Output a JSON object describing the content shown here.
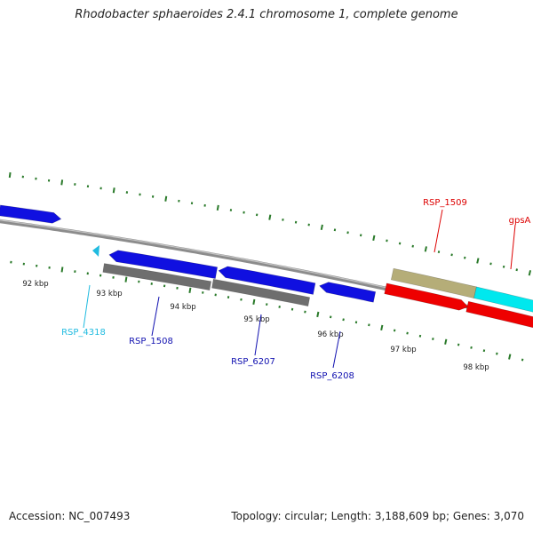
{
  "title": "Rhodobacter sphaeroides 2.4.1 chromosome 1, complete genome",
  "footer": {
    "accession": "Accession: NC_007493",
    "topology": "Topology: circular; Length: 3,188,609 bp; Genes: 3,070"
  },
  "colors": {
    "backbone": "#8a8a8a",
    "tick": "#2a7a2a",
    "gene_blue": "#1010e0",
    "gene_gray": "#6e6e6e",
    "gene_khaki": "#b5ad78",
    "gene_cyan": "#00e8ee",
    "gene_red": "#ee0000",
    "label_cyan": "#20bbe0",
    "label_blue": "#1010b0",
    "label_red": "#dd0000"
  },
  "scale_labels": [
    "92 kbp",
    "93 kbp",
    "94 kbp",
    "95 kbp",
    "96 kbp",
    "97 kbp",
    "98 kbp"
  ],
  "gene_labels": [
    {
      "text": "RSP_4318",
      "color": "label_cyan"
    },
    {
      "text": "RSP_1508",
      "color": "label_blue"
    },
    {
      "text": "RSP_6207",
      "color": "label_blue"
    },
    {
      "text": "RSP_6208",
      "color": "label_blue"
    },
    {
      "text": "RSP_1509",
      "color": "label_red"
    },
    {
      "text": "gpsA",
      "color": "label_red"
    }
  ],
  "features": [
    {
      "color": "gene_blue",
      "direction": "forward"
    },
    {
      "color": "gene_blue",
      "direction": "reverse"
    },
    {
      "color": "gene_blue",
      "direction": "reverse"
    },
    {
      "color": "gene_blue",
      "direction": "reverse"
    },
    {
      "color": "gene_gray",
      "direction": "none"
    },
    {
      "color": "gene_gray",
      "direction": "none"
    },
    {
      "color": "gene_khaki",
      "direction": "none"
    },
    {
      "color": "gene_cyan",
      "direction": "none"
    },
    {
      "color": "gene_red",
      "direction": "forward"
    },
    {
      "color": "gene_red",
      "direction": "forward"
    },
    {
      "color": "label_cyan",
      "direction": "reverse"
    }
  ]
}
